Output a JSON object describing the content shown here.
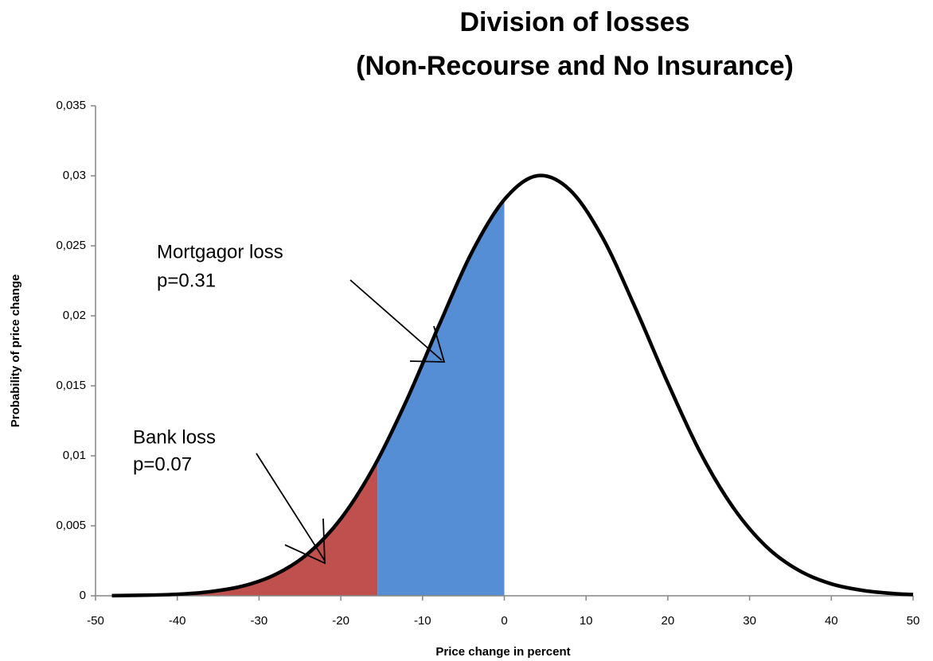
{
  "chart_data": {
    "type": "line",
    "title": [
      "Division of losses",
      "(Non-Recourse and No Insurance)"
    ],
    "xlabel": "Price change  in percent",
    "ylabel": "Probability of price change",
    "x": [
      -48,
      -44,
      -40,
      -36,
      -32,
      -28,
      -24,
      -20,
      -16,
      -12,
      -8,
      -4,
      0,
      4,
      8,
      12,
      16,
      20,
      24,
      28,
      32,
      36,
      40,
      44,
      48,
      50
    ],
    "series": [
      {
        "color": "#000000",
        "values": [
          1e-05,
          4e-05,
          0.00011,
          0.00029,
          0.00069,
          0.00152,
          0.00302,
          0.0055,
          0.00915,
          0.0139,
          0.0193,
          0.0245,
          0.0283,
          0.03,
          0.029,
          0.0256,
          0.0206,
          0.0152,
          0.0102,
          0.0063,
          0.00354,
          0.00182,
          0.00085,
          0.00037,
          0.00014,
          9e-05
        ]
      }
    ],
    "regions": [
      {
        "from": -48,
        "to": -15.5,
        "color": "#c0504d"
      },
      {
        "from": -15.5,
        "to": 0,
        "color": "#558ed5"
      }
    ],
    "annotations": [
      {
        "lines": [
          "Mortgagor loss",
          "p=0.31"
        ]
      },
      {
        "lines": [
          "Bank loss",
          "p=0.07"
        ]
      }
    ],
    "xlim": [
      -50,
      50
    ],
    "xticks": [
      -50,
      -40,
      -30,
      -20,
      -10,
      0,
      10,
      20,
      30,
      40,
      50
    ],
    "ylim": [
      0,
      0.035
    ],
    "yticks": [
      0,
      {
        "value": 0.005,
        "label": "0,005"
      },
      {
        "value": 0.01,
        "label": "0,01"
      },
      {
        "value": 0.015,
        "label": "0,015"
      },
      {
        "value": 0.02,
        "label": "0,02"
      },
      {
        "value": 0.025,
        "label": "0,025"
      },
      {
        "value": 0.03,
        "label": "0,03"
      },
      {
        "value": 0.035,
        "label": "0,035"
      }
    ],
    "grid": false
  }
}
